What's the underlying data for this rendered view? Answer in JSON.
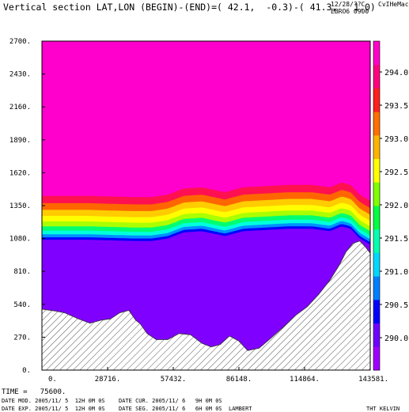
{
  "header": {
    "title": "Vertical section LAT,LON (BEGIN)-(END)=( 42.1,  -0.3)-( 41.3,   1.0)",
    "date": "12/28/??C",
    "user": "CvIHeMac",
    "run": "EBRO6 0900"
  },
  "footer": {
    "time_label": "TIME =   75600.",
    "model_date": "DATE MOD. 2005/11/ 5  12H 0M 0S",
    "current_date": "DATE CUR. 2005/11/ 6   9H 0M 0S",
    "exp_date": "DATE EXP. 2005/11/ 5  12H 0M 0S",
    "seg_date": "DATE SEG. 2005/11/ 6   6H 0M 0S",
    "projection": "LAMBERT",
    "variable": "THT KELVIN"
  },
  "chart_data": {
    "type": "area",
    "title": "",
    "xlim": [
      0,
      143581
    ],
    "ylim": [
      0,
      2700
    ],
    "xticks": [
      "0.",
      "28716.",
      "57432.",
      "86148.",
      "114864.",
      "143581."
    ],
    "yticks": [
      "0.",
      "270.",
      "540.",
      "810.",
      "1080.",
      "1350.",
      "1620.",
      "1890.",
      "2160.",
      "2430.",
      "2700."
    ],
    "terrain_height": {
      "x": [
        0,
        6000,
        10000,
        16000,
        21000,
        26000,
        30000,
        34000,
        38000,
        41000,
        43000,
        46000,
        50000,
        55000,
        60000,
        65000,
        70000,
        74000,
        78000,
        82000,
        86000,
        90000,
        95000,
        100000,
        106000,
        111000,
        116000,
        121000,
        126000,
        130000,
        133000,
        136000,
        139000,
        141500,
        143581
      ],
      "y": [
        500,
        485,
        470,
        420,
        385,
        410,
        420,
        470,
        490,
        410,
        380,
        300,
        250,
        250,
        300,
        290,
        220,
        190,
        210,
        280,
        240,
        160,
        180,
        260,
        360,
        450,
        520,
        620,
        740,
        860,
        970,
        1040,
        1060,
        1010,
        960
      ]
    },
    "upper_boundary_height": {
      "x": [
        0,
        20000,
        40000,
        48000,
        55000,
        62000,
        70000,
        80000,
        88000,
        98000,
        108000,
        118000,
        126000,
        131000,
        135000,
        139000,
        143581
      ],
      "y": [
        1430,
        1430,
        1420,
        1420,
        1440,
        1490,
        1500,
        1460,
        1500,
        1510,
        1520,
        1520,
        1500,
        1540,
        1520,
        1440,
        1390
      ]
    },
    "contour_bands": [
      {
        "level": 291.8,
        "dy": 0
      },
      {
        "level": 291.6,
        "dy": 60
      },
      {
        "level": 291.4,
        "dy": 115
      },
      {
        "level": 291.2,
        "dy": 165
      },
      {
        "level": 291.0,
        "dy": 210
      },
      {
        "level": 290.8,
        "dy": 250
      },
      {
        "level": 290.6,
        "dy": 285
      },
      {
        "level": 290.4,
        "dy": 315
      },
      {
        "level": 290.2,
        "dy": 340
      },
      {
        "level": 290.0,
        "dy": 360
      }
    ],
    "colorbar": {
      "labels": [
        "290.0",
        "290.5",
        "291.0",
        "291.5",
        "292.0",
        "292.5",
        "293.0",
        "293.5",
        "294.0"
      ],
      "colors": [
        "#a000ff",
        "#7000ff",
        "#0000ff",
        "#0080ff",
        "#00d8ff",
        "#00ffb0",
        "#00ff40",
        "#80ff00",
        "#ffff00",
        "#ffb400",
        "#ff7000",
        "#ff2020",
        "#ff0080",
        "#ff00c8"
      ]
    },
    "colors": {
      "background_field": "#ff00cc",
      "bands": [
        "#ff1050",
        "#ff6600",
        "#ffcc00",
        "#ffff00",
        "#aaff00",
        "#00ff70",
        "#00ffdd",
        "#0090ff",
        "#0000ff",
        "#8000ff"
      ],
      "lowest_field": "#9000ff"
    }
  }
}
